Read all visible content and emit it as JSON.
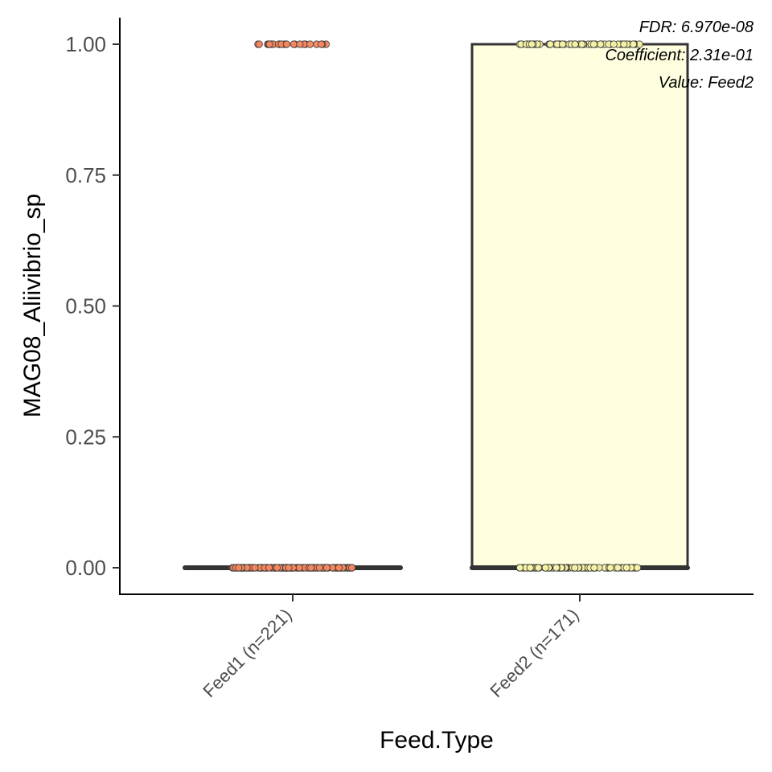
{
  "chart_data": {
    "type": "box",
    "xlabel": "Feed.Type",
    "ylabel": "MAG08_Aliivibrio_sp",
    "ylim": [
      -0.05,
      1.05
    ],
    "yticks": [
      "0.00",
      "0.25",
      "0.50",
      "0.75",
      "1.00"
    ],
    "ytick_values": [
      0,
      0.25,
      0.5,
      0.75,
      1.0
    ],
    "categories": [
      "Feed1 (n=221)",
      "Feed2 (n=171)"
    ],
    "groups": [
      {
        "category": "Feed1 (n=221)",
        "fill": "#ffffff",
        "point_color": "#f4875f",
        "box": {
          "min": 0,
          "q1": 0,
          "median": 0,
          "q3": 0,
          "max": 0
        },
        "points": {
          "at_0": 196,
          "at_1": 25
        }
      },
      {
        "category": "Feed2 (n=171)",
        "fill": "#ffffe0",
        "point_color": "#f5f2a6",
        "box": {
          "min": 0,
          "q1": 0,
          "median": 0,
          "q3": 1,
          "max": 1
        },
        "points": {
          "at_0": 111,
          "at_1": 60
        }
      }
    ],
    "annotations": [
      "FDR: 6.970e-08",
      "Coefficient: 2.31e-01",
      "Value: Feed2"
    ],
    "grid": false,
    "legend": "none"
  }
}
